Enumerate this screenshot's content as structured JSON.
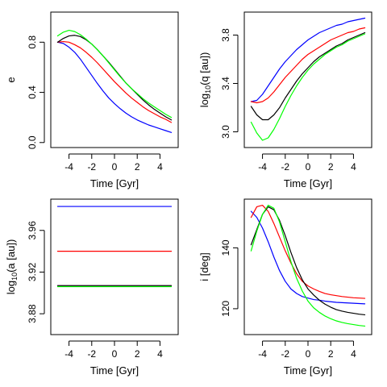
{
  "chart_data": [
    {
      "type": "line",
      "xlabel": "Time [Gyr]",
      "ylabel": "e",
      "xlim": [
        -5.6,
        5.6
      ],
      "ylim": [
        -0.04,
        1.04
      ],
      "xticks": [
        -4,
        -2,
        0,
        2,
        4
      ],
      "yticks": [
        0.0,
        0.4,
        0.8
      ],
      "ytick_labels": [
        "0.0",
        "0.4",
        "0.8"
      ],
      "series": [
        {
          "color": "#0000ff",
          "x": [
            -5,
            -4.5,
            -4,
            -3.5,
            -3,
            -2.5,
            -2,
            -1.5,
            -1,
            -0.5,
            0,
            0.5,
            1,
            1.5,
            2,
            2.5,
            3,
            3.5,
            4,
            4.5,
            5
          ],
          "values": [
            0.8,
            0.79,
            0.76,
            0.72,
            0.665,
            0.6,
            0.535,
            0.47,
            0.41,
            0.355,
            0.31,
            0.27,
            0.235,
            0.205,
            0.18,
            0.16,
            0.14,
            0.125,
            0.11,
            0.095,
            0.08
          ]
        },
        {
          "color": "#ff0000",
          "x": [
            -5,
            -4.5,
            -4,
            -3.5,
            -3,
            -2.5,
            -2,
            -1.5,
            -1,
            -0.5,
            0,
            0.5,
            1,
            1.5,
            2,
            2.5,
            3,
            3.5,
            4,
            4.5,
            5
          ],
          "values": [
            0.8,
            0.805,
            0.8,
            0.78,
            0.755,
            0.72,
            0.68,
            0.635,
            0.585,
            0.535,
            0.485,
            0.44,
            0.395,
            0.355,
            0.32,
            0.285,
            0.255,
            0.23,
            0.205,
            0.185,
            0.16
          ]
        },
        {
          "color": "#000000",
          "x": [
            -5,
            -4.5,
            -4,
            -3.5,
            -3,
            -2.5,
            -2,
            -1.5,
            -1,
            -0.5,
            0,
            0.5,
            1,
            1.5,
            2,
            2.5,
            3,
            3.5,
            4,
            4.5,
            5
          ],
          "values": [
            0.8,
            0.83,
            0.85,
            0.855,
            0.845,
            0.82,
            0.785,
            0.74,
            0.69,
            0.64,
            0.585,
            0.53,
            0.475,
            0.43,
            0.385,
            0.34,
            0.3,
            0.265,
            0.235,
            0.205,
            0.18
          ]
        },
        {
          "color": "#00ff00",
          "x": [
            -5,
            -4.5,
            -4,
            -3.5,
            -3,
            -2.5,
            -2,
            -1.5,
            -1,
            -0.5,
            0,
            0.5,
            1,
            1.5,
            2,
            2.5,
            3,
            3.5,
            4,
            4.5,
            5
          ],
          "values": [
            0.85,
            0.88,
            0.895,
            0.885,
            0.86,
            0.825,
            0.785,
            0.74,
            0.69,
            0.635,
            0.58,
            0.525,
            0.475,
            0.43,
            0.39,
            0.35,
            0.315,
            0.285,
            0.255,
            0.225,
            0.2
          ]
        }
      ]
    },
    {
      "type": "line",
      "xlabel": "Time [Gyr]",
      "ylabel_main": "log",
      "ylabel_sub": "10",
      "ylabel_rest": "(q [au])",
      "xlim": [
        -5.6,
        5.6
      ],
      "ylim": [
        2.87,
        3.99
      ],
      "xticks": [
        -4,
        -2,
        0,
        2,
        4
      ],
      "yticks": [
        3.0,
        3.4,
        3.8
      ],
      "ytick_labels": [
        "3.0",
        "3.4",
        "3.8"
      ],
      "series": [
        {
          "color": "#0000ff",
          "x": [
            -5,
            -4.5,
            -4,
            -3.5,
            -3,
            -2.5,
            -2,
            -1.5,
            -1,
            -0.5,
            0,
            0.5,
            1,
            1.5,
            2,
            2.5,
            3,
            3.5,
            4,
            4.5,
            5
          ],
          "values": [
            3.25,
            3.26,
            3.31,
            3.38,
            3.45,
            3.52,
            3.58,
            3.63,
            3.68,
            3.72,
            3.76,
            3.79,
            3.82,
            3.84,
            3.86,
            3.88,
            3.89,
            3.91,
            3.92,
            3.93,
            3.94
          ]
        },
        {
          "color": "#ff0000",
          "x": [
            -5,
            -4.5,
            -4,
            -3.5,
            -3,
            -2.5,
            -2,
            -1.5,
            -1,
            -0.5,
            0,
            0.5,
            1,
            1.5,
            2,
            2.5,
            3,
            3.5,
            4,
            4.5,
            5
          ],
          "values": [
            3.25,
            3.24,
            3.25,
            3.28,
            3.33,
            3.39,
            3.45,
            3.5,
            3.55,
            3.6,
            3.64,
            3.67,
            3.7,
            3.73,
            3.76,
            3.78,
            3.8,
            3.82,
            3.83,
            3.85,
            3.86
          ]
        },
        {
          "color": "#000000",
          "x": [
            -5,
            -4.5,
            -4,
            -3.5,
            -3,
            -2.5,
            -2,
            -1.5,
            -1,
            -0.5,
            0,
            0.5,
            1,
            1.5,
            2,
            2.5,
            3,
            3.5,
            4,
            4.5,
            5
          ],
          "values": [
            3.21,
            3.14,
            3.1,
            3.1,
            3.14,
            3.2,
            3.28,
            3.35,
            3.42,
            3.48,
            3.53,
            3.58,
            3.62,
            3.65,
            3.68,
            3.71,
            3.73,
            3.76,
            3.78,
            3.8,
            3.82
          ]
        },
        {
          "color": "#00ff00",
          "x": [
            -5,
            -4.5,
            -4,
            -3.5,
            -3,
            -2.5,
            -2,
            -1.5,
            -1,
            -0.5,
            0,
            0.5,
            1,
            1.5,
            2,
            2.5,
            3,
            3.5,
            4,
            4.5,
            5
          ],
          "values": [
            3.08,
            2.99,
            2.93,
            2.95,
            3.02,
            3.11,
            3.21,
            3.3,
            3.38,
            3.45,
            3.51,
            3.56,
            3.6,
            3.64,
            3.67,
            3.7,
            3.72,
            3.75,
            3.77,
            3.79,
            3.81
          ]
        }
      ]
    },
    {
      "type": "line",
      "xlabel": "Time [Gyr]",
      "ylabel_main": "log",
      "ylabel_sub": "10",
      "ylabel_rest": "(a [au])",
      "xlim": [
        -5.6,
        5.6
      ],
      "ylim": [
        3.86,
        3.99
      ],
      "xticks": [
        -4,
        -2,
        0,
        2,
        4
      ],
      "yticks": [
        3.88,
        3.92,
        3.96
      ],
      "ytick_labels": [
        "3.88",
        "3.92",
        "3.96"
      ],
      "series": [
        {
          "color": "#0000ff",
          "x": [
            -5,
            5
          ],
          "values": [
            3.983,
            3.983
          ]
        },
        {
          "color": "#ff0000",
          "x": [
            -5,
            5
          ],
          "values": [
            3.94,
            3.94
          ]
        },
        {
          "color": "#000000",
          "x": [
            -5,
            5
          ],
          "values": [
            3.907,
            3.907
          ]
        },
        {
          "color": "#00ff00",
          "x": [
            -5,
            5
          ],
          "values": [
            3.906,
            3.906
          ]
        }
      ]
    },
    {
      "type": "line",
      "xlabel": "Time [Gyr]",
      "ylabel": "i [deg]",
      "xlim": [
        -5.6,
        5.6
      ],
      "ylim": [
        111.5,
        156
      ],
      "xticks": [
        -4,
        -2,
        0,
        2,
        4
      ],
      "yticks": [
        120,
        140
      ],
      "ytick_labels": [
        "120",
        "140"
      ],
      "series": [
        {
          "color": "#0000ff",
          "x": [
            -5,
            -4.5,
            -4,
            -3.5,
            -3,
            -2.5,
            -2,
            -1.5,
            -1,
            -0.5,
            0,
            0.5,
            1,
            1.5,
            2,
            2.5,
            3,
            3.5,
            4,
            4.5,
            5
          ],
          "values": [
            152,
            150,
            146.5,
            142,
            137,
            132.5,
            129,
            126.5,
            125,
            124,
            123.5,
            123,
            122.8,
            122.5,
            122.3,
            122.1,
            122,
            121.9,
            121.8,
            121.7,
            121.6
          ]
        },
        {
          "color": "#ff0000",
          "x": [
            -5,
            -4.5,
            -4,
            -3.5,
            -3,
            -2.5,
            -2,
            -1.5,
            -1,
            -0.5,
            0,
            0.5,
            1,
            1.5,
            2,
            2.5,
            3,
            3.5,
            4,
            4.5,
            5
          ],
          "values": [
            150,
            153.5,
            154,
            152,
            148,
            143.5,
            139,
            135,
            131.5,
            129,
            127.5,
            126.5,
            125.7,
            125,
            124.6,
            124.3,
            124,
            123.8,
            123.6,
            123.5,
            123.4
          ]
        },
        {
          "color": "#000000",
          "x": [
            -5,
            -4.5,
            -4,
            -3.5,
            -3,
            -2.5,
            -2,
            -1.5,
            -1,
            -0.5,
            0,
            0.5,
            1,
            1.5,
            2,
            2.5,
            3,
            3.5,
            4,
            4.5,
            5
          ],
          "values": [
            141,
            146,
            151,
            153.5,
            152.5,
            149,
            144,
            138.5,
            133.5,
            129.5,
            126.5,
            124.5,
            122.8,
            121.5,
            120.5,
            119.7,
            119.2,
            118.8,
            118.5,
            118.2,
            118
          ]
        },
        {
          "color": "#00ff00",
          "x": [
            -5,
            -4.5,
            -4,
            -3.5,
            -3,
            -2.5,
            -2,
            -1.5,
            -1,
            -0.5,
            0,
            0.5,
            1,
            1.5,
            2,
            2.5,
            3,
            3.5,
            4,
            4.5,
            5
          ],
          "values": [
            139,
            145.5,
            151,
            154,
            153,
            148.5,
            142,
            135.5,
            130,
            125.8,
            122.5,
            120.3,
            118.8,
            117.6,
            116.7,
            116,
            115.5,
            115.1,
            114.8,
            114.5,
            114.3
          ]
        }
      ]
    }
  ]
}
